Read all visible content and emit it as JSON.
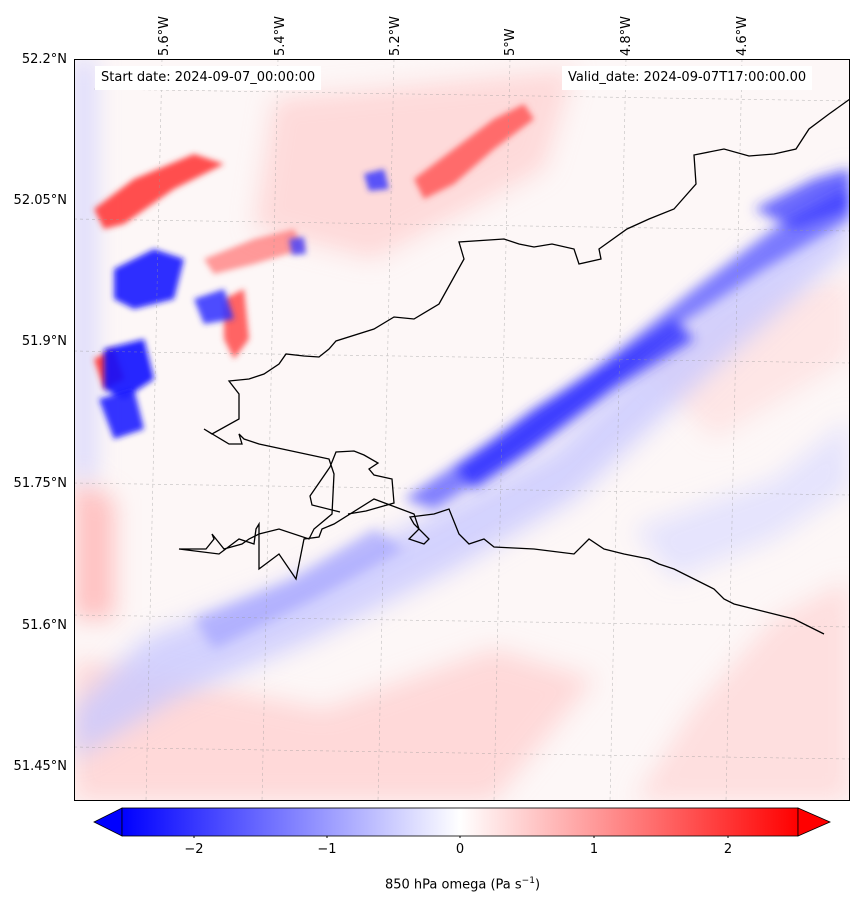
{
  "map": {
    "start_label": "Start date: 2024-09-07_00:00:00",
    "valid_label": "Valid_date: 2024-09-07T17:00:00.00",
    "lon_labels": [
      "5.6°W",
      "5.4°W",
      "5.2°W",
      "5°W",
      "4.8°W",
      "4.6°W"
    ],
    "lat_labels": [
      "52.2°N",
      "52.05°N",
      "51.9°N",
      "51.75°N",
      "51.6°N",
      "51.45°N"
    ],
    "field": "850 hPa omega",
    "colors": {
      "negative": "#0000ff",
      "zero": "#ffffff",
      "positive": "#ff0000",
      "coast": "#000000"
    }
  },
  "colorbar": {
    "title": "850 hPa omega (Pa s",
    "title_sup": "−1",
    "title_end": ")",
    "ticks": [
      "−2",
      "−1",
      "0",
      "1",
      "2"
    ],
    "min": -2.75,
    "max": 2.75
  }
}
